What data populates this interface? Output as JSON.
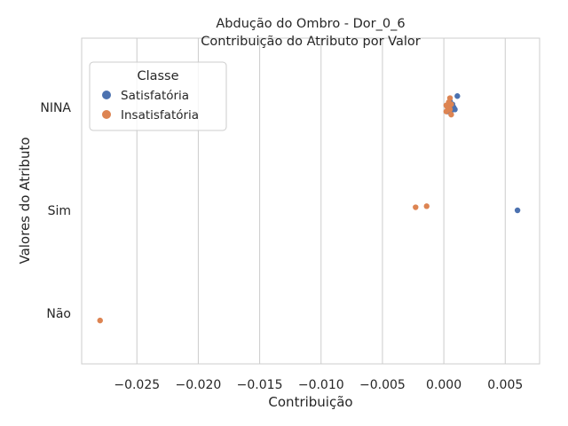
{
  "chart_data": {
    "type": "scatter",
    "title": "Abdução do Ombro - Dor_0_6",
    "subtitle": "Contribuição do Atributo por Valor",
    "xlabel": "Contribuição",
    "ylabel": "Valores do Atributo",
    "categories": [
      "NINA",
      "Sim",
      "Não"
    ],
    "xlim": [
      -0.0295,
      0.0078
    ],
    "x_ticks": [
      -0.025,
      -0.02,
      -0.015,
      -0.01,
      -0.005,
      0.0,
      0.005
    ],
    "x_tick_labels": [
      "−0.025",
      "−0.020",
      "−0.015",
      "−0.010",
      "−0.005",
      "0.000",
      "0.005"
    ],
    "grid": "vertical",
    "legend": {
      "title": "Classe",
      "placement": "top-left"
    },
    "series": [
      {
        "name": "Satisfatória",
        "color": "#4c72b0",
        "points": [
          {
            "x": 0.0011,
            "category": "NINA",
            "jitter": -0.11
          },
          {
            "x": 0.0005,
            "category": "NINA",
            "jitter": -0.06
          },
          {
            "x": 0.0007,
            "category": "NINA",
            "jitter": -0.03
          },
          {
            "x": 0.0008,
            "category": "NINA",
            "jitter": 0.0
          },
          {
            "x": 0.0004,
            "category": "NINA",
            "jitter": 0.01
          },
          {
            "x": 0.0006,
            "category": "NINA",
            "jitter": 0.03
          },
          {
            "x": 0.0009,
            "category": "NINA",
            "jitter": 0.02
          },
          {
            "x": 0.0003,
            "category": "NINA",
            "jitter": 0.04
          },
          {
            "x": 0.006,
            "category": "Sim",
            "jitter": 0.0
          }
        ]
      },
      {
        "name": "Insatisfatória",
        "color": "#dd8452",
        "points": [
          {
            "x": 0.0005,
            "category": "NINA",
            "jitter": -0.09
          },
          {
            "x": 0.0004,
            "category": "NINA",
            "jitter": -0.05
          },
          {
            "x": 0.0002,
            "category": "NINA",
            "jitter": -0.02
          },
          {
            "x": 0.0006,
            "category": "NINA",
            "jitter": -0.03
          },
          {
            "x": 0.0003,
            "category": "NINA",
            "jitter": 0.0
          },
          {
            "x": 0.0005,
            "category": "NINA",
            "jitter": 0.02
          },
          {
            "x": 0.0002,
            "category": "NINA",
            "jitter": 0.04
          },
          {
            "x": 0.0006,
            "category": "NINA",
            "jitter": 0.07
          },
          {
            "x": -0.0023,
            "category": "Sim",
            "jitter": -0.03
          },
          {
            "x": -0.0014,
            "category": "Sim",
            "jitter": -0.04
          },
          {
            "x": -0.028,
            "category": "Não",
            "jitter": 0.07
          }
        ]
      }
    ]
  }
}
